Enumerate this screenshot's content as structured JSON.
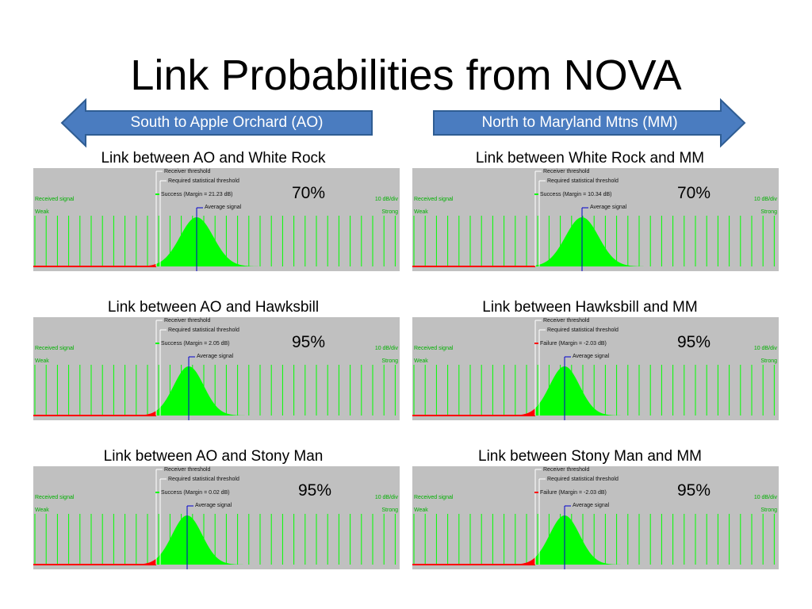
{
  "title": "Link Probabilities from NOVA",
  "arrows": {
    "south_label": "South to Apple Orchard (AO)",
    "north_label": "North to Maryland Mtns (MM)",
    "fill": "#4a7cc0",
    "stroke": "#2f5d93"
  },
  "colors": {
    "panel_bg": "#c0c0c0",
    "signal_green": "#00ff00",
    "failure_red": "#ff0000",
    "label_green": "#00b000",
    "threshold_white": "#ffffff",
    "average_blue": "#0000cc"
  },
  "panel_labels": {
    "received_signal": "Received signal",
    "weak": "Weak",
    "scale": "10 dB/div",
    "strong": "Strong",
    "receiver_threshold": "Receiver threshold",
    "required_threshold": "Required statistical threshold",
    "average_signal": "Average signal"
  },
  "panels": [
    {
      "title": "Link between AO and White Rock",
      "percent": "70%",
      "status": "Success (Margin = 21.23 dB)",
      "outcome": "success"
    },
    {
      "title": "Link between White Rock and MM",
      "percent": "70%",
      "status": "Success (Margin = 10.34 dB)",
      "outcome": "success"
    },
    {
      "title": "Link between AO and Hawksbill",
      "percent": "95%",
      "status": "Success (Margin = 2.05 dB)",
      "outcome": "success"
    },
    {
      "title": "Link between Hawksbill and MM",
      "percent": "95%",
      "status": "Failure (Margin = -2.03 dB)",
      "outcome": "failure"
    },
    {
      "title": "Link between AO and Stony Man",
      "percent": "95%",
      "status": "Success (Margin = 0.02 dB)",
      "outcome": "success"
    },
    {
      "title": "Link between Stony Man and MM",
      "percent": "95%",
      "status": "Failure (Margin = -2.03 dB)",
      "outcome": "failure"
    }
  ]
}
